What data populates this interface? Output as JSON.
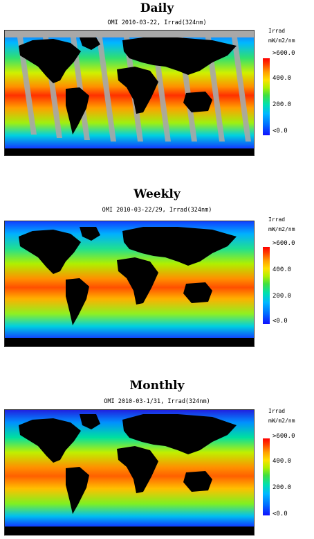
{
  "panels": [
    {
      "heading": "Daily",
      "subtitle": "OMI 2010-03-22, Irrad(324nm)"
    },
    {
      "heading": "Weekly",
      "subtitle": "OMI 2010-03-22/29, Irrad(324nm)"
    },
    {
      "heading": "Monthly",
      "subtitle": "OMI 2010-03-1/31, Irrad(324nm)"
    }
  ],
  "legend": {
    "title": "Irrad",
    "units": "mW/m2/nm",
    "ticks": [
      ">600.0",
      "400.0",
      "200.0",
      "<0.0"
    ]
  },
  "colors": {
    "land": "#000000",
    "missing": "#a8a8a8",
    "colorbar_low": "#1010ff",
    "colorbar_high": "#ff0000"
  }
}
